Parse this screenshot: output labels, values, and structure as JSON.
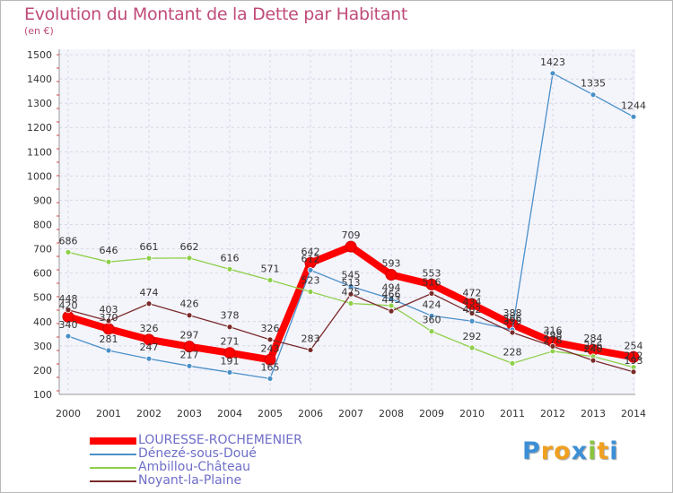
{
  "chart_data": {
    "type": "line",
    "title": "Evolution du Montant de la Dette par Habitant",
    "subtitle": "(en €)",
    "x": [
      "2000",
      "2001",
      "2002",
      "2003",
      "2004",
      "2005",
      "2006",
      "2007",
      "2008",
      "2009",
      "2010",
      "2011",
      "2012",
      "2013",
      "2014"
    ],
    "y_ticks": [
      "100",
      "200",
      "300",
      "400",
      "500",
      "600",
      "700",
      "800",
      "900",
      "1000",
      "1100",
      "1200",
      "1300",
      "1400",
      "1500"
    ],
    "ylim": [
      100,
      1500
    ],
    "grid": true,
    "legend_position": "bottom-left",
    "series": [
      {
        "name": "LOURESSE-ROCHEMENIER",
        "color": "#ff0000",
        "values": [
          420,
          370,
          326,
          297,
          271,
          243,
          642,
          709,
          593,
          553,
          472,
          388,
          316,
          284,
          254
        ]
      },
      {
        "name": "Dénezé-sous-Doué",
        "color": "#4a90c8",
        "values": [
          340,
          281,
          247,
          217,
          191,
          165,
          612,
          545,
          494,
          424,
          402,
          366,
          1423,
          1335,
          1244
        ]
      },
      {
        "name": "Ambillou-Château",
        "color": "#8ed04a",
        "values": [
          686,
          646,
          661,
          662,
          616,
          571,
          523,
          475,
          466,
          360,
          292,
          228,
          278,
          256,
          212
        ]
      },
      {
        "name": "Noyant-la-Plaine",
        "color": "#7a2a2a",
        "values": [
          448,
          403,
          474,
          426,
          378,
          326,
          283,
          513,
          443,
          516,
          434,
          355,
          298,
          240,
          193
        ]
      }
    ]
  },
  "logo": {
    "letters": [
      "P",
      "r",
      "o",
      "x",
      "i",
      "t",
      "i"
    ],
    "colors": [
      "#3b8fd6",
      "#f0a020",
      "#f0a020",
      "#3b8fd6",
      "#8ac43f",
      "#f0a020",
      "#3b8fd6"
    ]
  }
}
